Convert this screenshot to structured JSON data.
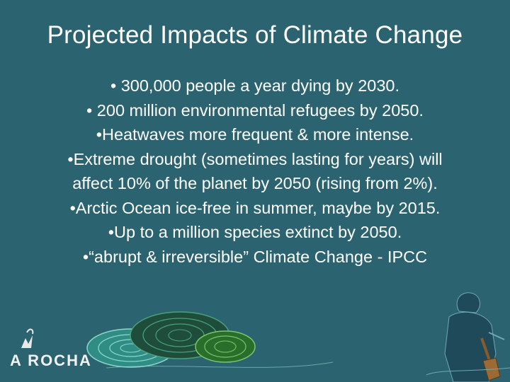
{
  "slide": {
    "title": "Projected Impacts of Climate Change",
    "bullets": [
      "• 300,000 people a year dying by 2030.",
      "• 200 million environmental refugees by 2050.",
      "•Heatwaves more frequent & more intense.",
      "•Extreme drought (sometimes lasting for years) will",
      "affect 10% of the planet by 2050 (rising from 2%).",
      "•Arctic Ocean ice-free in summer, maybe by 2015.",
      "•Up to a million species extinct by 2050.",
      "•“abrupt & irreversible” Climate Change - IPCC"
    ]
  },
  "logo": {
    "text": "A ROCHA"
  },
  "colors": {
    "background": "#2b6470",
    "text": "#ffffff",
    "circle_teal": "#3aa59a",
    "circle_dark": "#1f5a3c",
    "circle_green": "#2f7a2f"
  }
}
